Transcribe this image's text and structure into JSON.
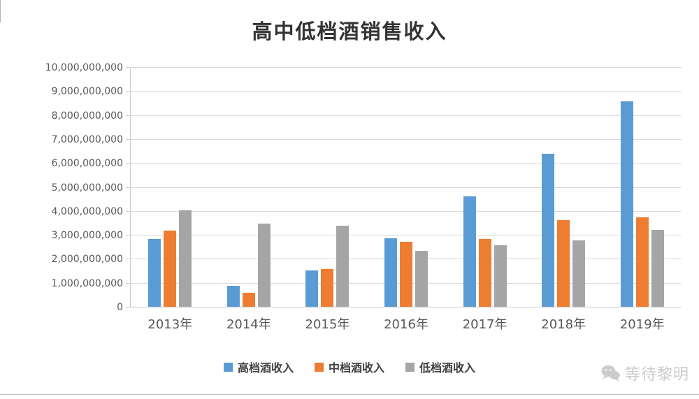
{
  "watermark": {
    "text": "等待黎明",
    "icon": "wechat-icon"
  },
  "chart_data": {
    "type": "bar",
    "title": "高中低档酒销售收入",
    "categories": [
      "2013年",
      "2014年",
      "2015年",
      "2016年",
      "2017年",
      "2018年",
      "2019年"
    ],
    "series": [
      {
        "name": "高档酒收入",
        "color": "#5B9BD5",
        "values": [
          2850000000,
          900000000,
          1550000000,
          2900000000,
          4650000000,
          6400000000,
          8600000000
        ]
      },
      {
        "name": "中档酒收入",
        "color": "#ED7D31",
        "values": [
          3200000000,
          600000000,
          1600000000,
          2750000000,
          2850000000,
          3650000000,
          3750000000
        ]
      },
      {
        "name": "低档酒收入",
        "color": "#A5A5A5",
        "values": [
          4050000000,
          3500000000,
          3400000000,
          2350000000,
          2600000000,
          2800000000,
          3250000000
        ]
      }
    ],
    "xlabel": "",
    "ylabel": "",
    "ylim": [
      0,
      10000000000
    ],
    "ytick_step": 1000000000,
    "ytick_labels": [
      "0",
      "1,000,000,000",
      "2,000,000,000",
      "3,000,000,000",
      "4,000,000,000",
      "5,000,000,000",
      "6,000,000,000",
      "7,000,000,000",
      "8,000,000,000",
      "9,000,000,000",
      "10,000,000,000"
    ],
    "grid": true,
    "legend_position": "bottom"
  },
  "colors": {
    "series_high": "#5B9BD5",
    "series_mid": "#ED7D31",
    "series_low": "#A5A5A5",
    "gridline": "#D9D9D9",
    "axis_text": "#595959",
    "watermark": "#CCCCCC"
  }
}
